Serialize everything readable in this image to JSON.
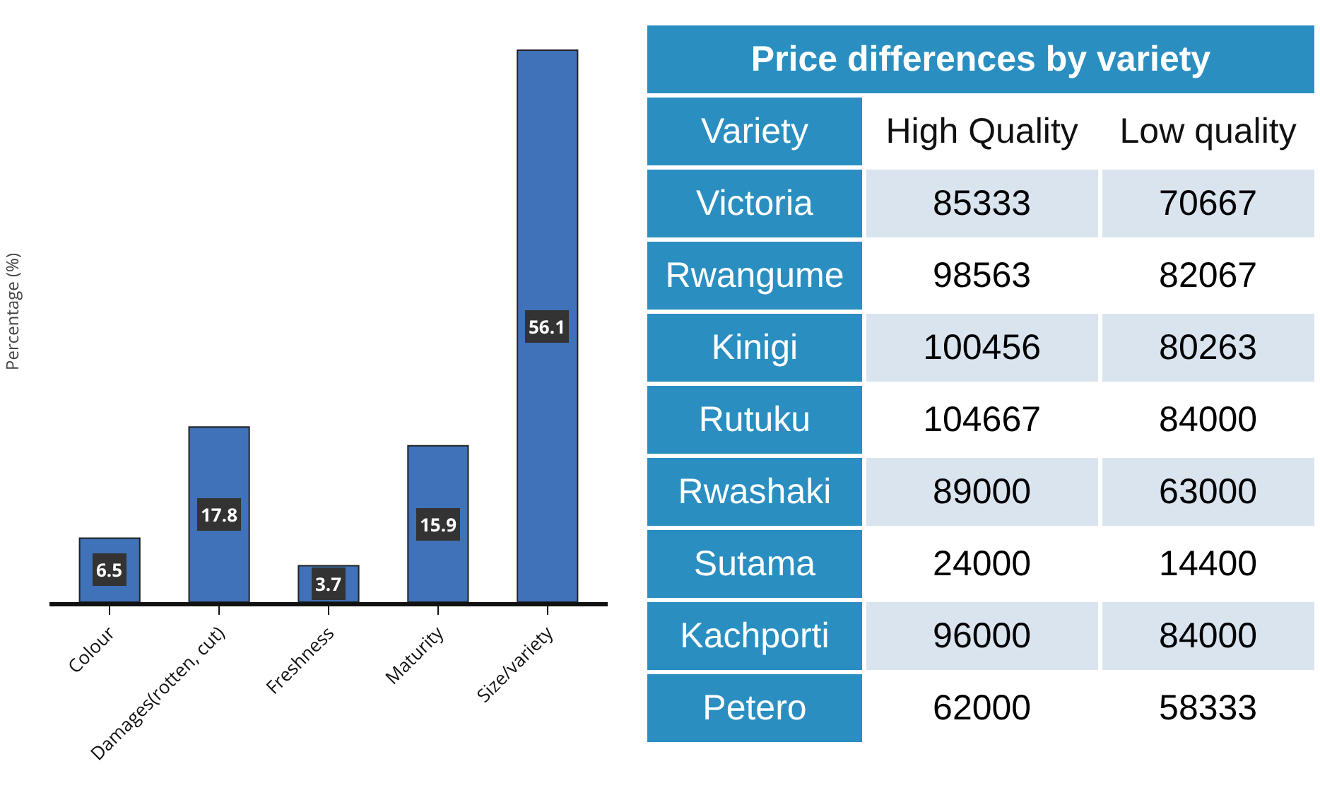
{
  "chart_data": [
    {
      "type": "bar",
      "ylabel": "Percentage (%)",
      "categories": [
        "Colour",
        "Damages(rotten, cut)",
        "Freshness",
        "Maturity",
        "Size/variety"
      ],
      "values": [
        6.5,
        17.8,
        3.7,
        15.9,
        56.1
      ],
      "color": "#3f72b8",
      "data_labels": true
    },
    {
      "type": "heatmap",
      "data_labels": true,
      "title": "Price differences by variety",
      "ylabel": "Variety",
      "categories": [
        "High Quality",
        "Low quality"
      ],
      "y_categories": [
        "Victoria",
        "Rwangume",
        "Kinigi",
        "Rutuku",
        "Rwashaki",
        "Sutama",
        "Kachporti",
        "Petero"
      ],
      "cells": [
        [
          85333,
          70667
        ],
        [
          98563,
          82067
        ],
        [
          100456,
          80263
        ],
        [
          104667,
          84000
        ],
        [
          89000,
          63000
        ],
        [
          24000,
          14400
        ],
        [
          96000,
          84000
        ],
        [
          62000,
          58333
        ]
      ]
    }
  ]
}
